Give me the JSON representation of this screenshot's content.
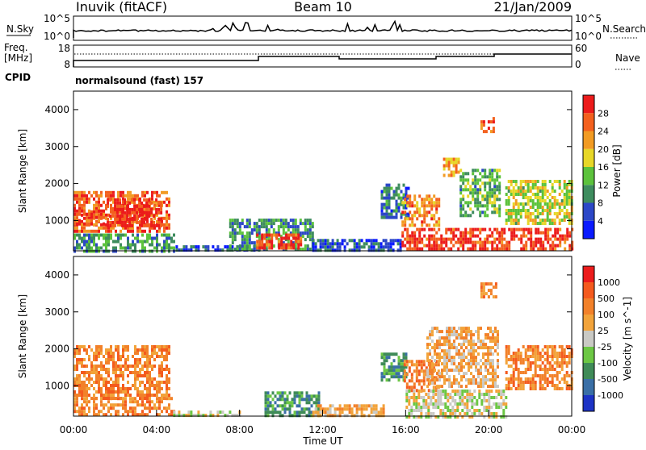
{
  "header": {
    "station": "Inuvik (fitACF)",
    "beam": "Beam 10",
    "date": "21/Jan/2009"
  },
  "strip": {
    "nsky_label": "N.Sky",
    "nsky_ticks": [
      "10^5",
      "10^0"
    ],
    "nsearch_label": "N.Search",
    "nsearch_ticks": [
      "10^5",
      "10^0"
    ],
    "freq_label": "Freq.",
    "freq_unit": "[MHz]",
    "freq_ticks": [
      "18",
      "8"
    ],
    "nave_label": "Nave",
    "nave_ticks": [
      "60",
      "0"
    ],
    "cpid_label": "CPID",
    "cpid_text": "normalsound (fast) 157"
  },
  "chart_data": [
    {
      "type": "heatmap",
      "name": "power",
      "ylabel": "Slant Range [km]",
      "xlabel": "Time UT",
      "xlim": [
        0,
        24
      ],
      "ylim": [
        180,
        4500
      ],
      "yticks": [
        1000,
        2000,
        3000,
        4000
      ],
      "colorbar": {
        "label": "Power [dB]",
        "ticks": [
          4,
          8,
          12,
          16,
          20,
          24,
          28
        ],
        "range": [
          0,
          30
        ],
        "colors": [
          "#0a1aff",
          "#2c47c7",
          "#3e8c5e",
          "#5cc23c",
          "#e7d728",
          "#f29b23",
          "#f3601e",
          "#ec1b1b"
        ]
      },
      "regions": [
        {
          "t": [
            0.0,
            4.6
          ],
          "r": [
            700,
            1800
          ],
          "value": 24
        },
        {
          "t": [
            1.6,
            4.2
          ],
          "r": [
            900,
            1600
          ],
          "value": 28
        },
        {
          "t": [
            0.0,
            1.5
          ],
          "r": [
            900,
            1300
          ],
          "value": 26
        },
        {
          "t": [
            0.0,
            4.8
          ],
          "r": [
            200,
            650
          ],
          "value": 10
        },
        {
          "t": [
            4.8,
            9.0
          ],
          "r": [
            200,
            330
          ],
          "value": 6
        },
        {
          "t": [
            7.5,
            11.5
          ],
          "r": [
            250,
            1050
          ],
          "value": 10
        },
        {
          "t": [
            8.8,
            11.0
          ],
          "r": [
            250,
            650
          ],
          "value": 26
        },
        {
          "t": [
            11.5,
            15.8
          ],
          "r": [
            200,
            500
          ],
          "value": 6
        },
        {
          "t": [
            14.8,
            16.2
          ],
          "r": [
            1100,
            2000
          ],
          "value": 8
        },
        {
          "t": [
            15.8,
            17.6
          ],
          "r": [
            900,
            1700
          ],
          "value": 22
        },
        {
          "t": [
            15.8,
            24.0
          ],
          "r": [
            200,
            800
          ],
          "value": 27
        },
        {
          "t": [
            17.8,
            18.6
          ],
          "r": [
            2200,
            2700
          ],
          "value": 20
        },
        {
          "t": [
            18.6,
            20.5
          ],
          "r": [
            1100,
            2400
          ],
          "value": 12
        },
        {
          "t": [
            20.8,
            24.0
          ],
          "r": [
            900,
            2100
          ],
          "value": 16
        },
        {
          "t": [
            19.6,
            20.3
          ],
          "r": [
            3400,
            3800
          ],
          "value": 26
        }
      ]
    },
    {
      "type": "heatmap",
      "name": "velocity",
      "ylabel": "Slant Range [km]",
      "xlabel": "Time UT",
      "xlim": [
        0,
        24
      ],
      "ylim": [
        180,
        4500
      ],
      "yticks": [
        1000,
        2000,
        3000,
        4000
      ],
      "xticks": [
        "00:00",
        "04:00",
        "08:00",
        "12:00",
        "16:00",
        "20:00",
        "00:00"
      ],
      "colorbar": {
        "label": "Velocity [m s^-1]",
        "ticks": [
          "1000",
          "500",
          "100",
          "25",
          "-25",
          "-100",
          "-500",
          "-1000"
        ],
        "colors": [
          "#1d33c5",
          "#3a6fa6",
          "#3f8b58",
          "#6cc744",
          "#c9c9c4",
          "#f2a33a",
          "#f2812a",
          "#f45a1e",
          "#ec1c1c"
        ]
      },
      "regions": [
        {
          "t": [
            0.0,
            4.6
          ],
          "r": [
            700,
            2100
          ],
          "class": 6
        },
        {
          "t": [
            0.0,
            4.8
          ],
          "r": [
            200,
            700
          ],
          "class": 6
        },
        {
          "t": [
            4.8,
            8.0
          ],
          "r": [
            200,
            330
          ],
          "class": 4
        },
        {
          "t": [
            9.2,
            11.8
          ],
          "r": [
            200,
            850
          ],
          "class": 2
        },
        {
          "t": [
            11.5,
            15.0
          ],
          "r": [
            200,
            500
          ],
          "class": 5
        },
        {
          "t": [
            14.8,
            16.0
          ],
          "r": [
            1200,
            1900
          ],
          "class": 2
        },
        {
          "t": [
            15.9,
            17.6
          ],
          "r": [
            900,
            1700
          ],
          "class": 6
        },
        {
          "t": [
            16.0,
            20.8
          ],
          "r": [
            200,
            900
          ],
          "class": 4
        },
        {
          "t": [
            17.0,
            20.5
          ],
          "r": [
            1000,
            2600
          ],
          "class": 5
        },
        {
          "t": [
            20.8,
            24.0
          ],
          "r": [
            900,
            2100
          ],
          "class": 6
        },
        {
          "t": [
            19.6,
            20.4
          ],
          "r": [
            3400,
            3800
          ],
          "class": 6
        }
      ]
    }
  ]
}
